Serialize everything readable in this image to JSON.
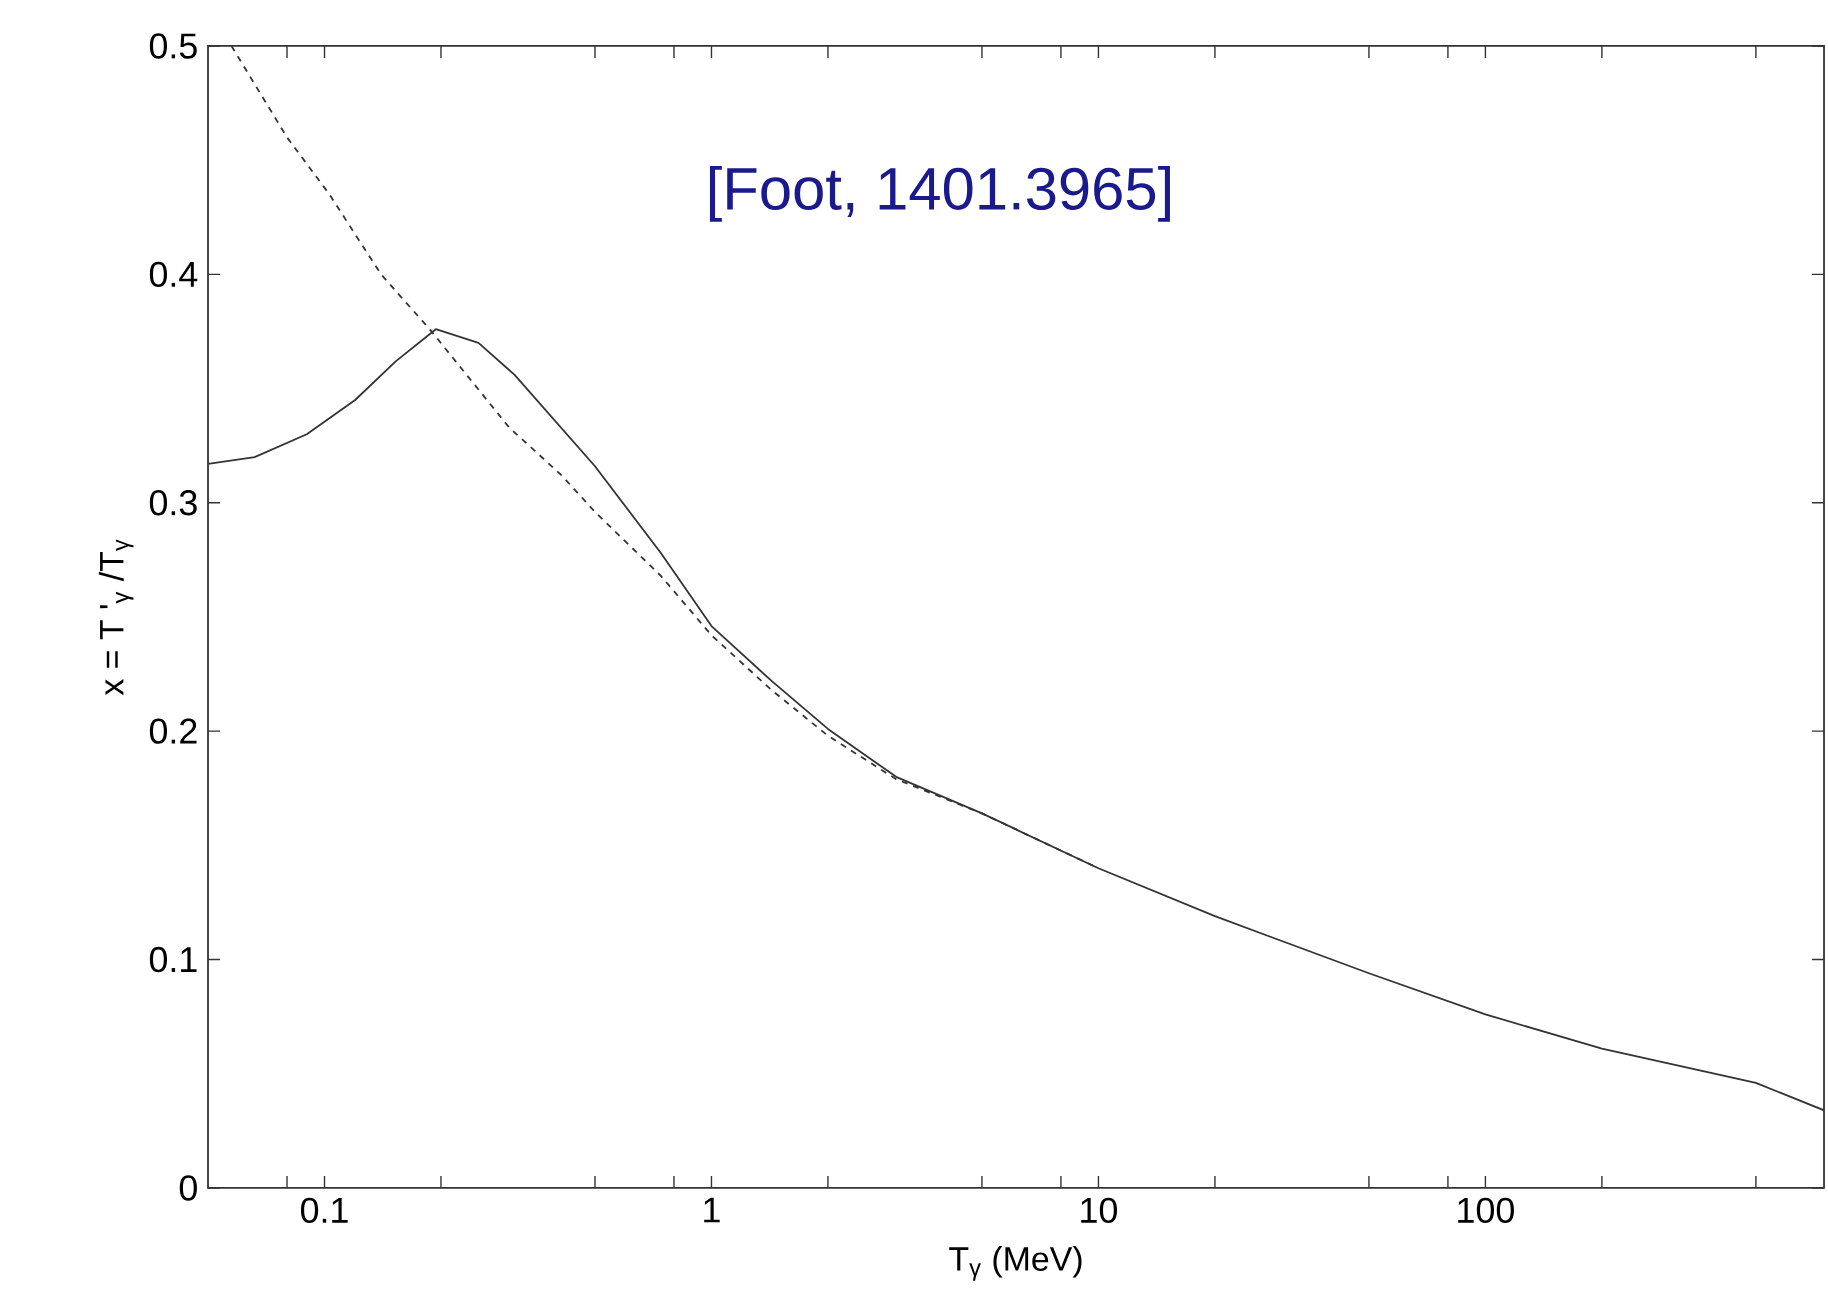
{
  "chart_data": {
    "type": "line",
    "log": "x",
    "xlabel": "T$_{γ}$  (MeV)",
    "ylabel": "x = T '$_{γ}$ /T$_{γ}$",
    "annotations": [
      "[Foot, 1401.3965]"
    ],
    "xlim": [
      0.05,
      750
    ],
    "ylim": [
      0,
      0.5
    ],
    "xticks": [
      {
        "value": 0.08,
        "label": null
      },
      0.1,
      {
        "value": 0.2,
        "label": null
      },
      {
        "value": 0.5,
        "label": null
      },
      {
        "value": 0.8,
        "label": null
      },
      1,
      {
        "value": 2,
        "label": null
      },
      {
        "value": 5,
        "label": null
      },
      {
        "value": 8,
        "label": null
      },
      10,
      {
        "value": 20,
        "label": null
      },
      {
        "value": 50,
        "label": null
      },
      {
        "value": 80,
        "label": null
      },
      100,
      {
        "value": 200,
        "label": null
      },
      {
        "value": 500,
        "label": null
      }
    ],
    "yticks": [
      0,
      0.1,
      0.2,
      0.3,
      0.4,
      0.5
    ],
    "series": [
      {
        "color": "#333333",
        "line_style": "solid",
        "x": [
          0.05,
          0.066,
          0.09,
          0.12,
          0.153,
          0.194,
          0.25,
          0.31,
          0.5,
          0.74,
          1,
          1.43,
          2,
          3,
          5,
          10,
          20,
          50,
          100,
          200,
          500,
          750
        ],
        "values": [
          0.317,
          0.32,
          0.33,
          0.345,
          0.362,
          0.376,
          0.37,
          0.356,
          0.316,
          0.278,
          0.246,
          0.222,
          0.201,
          0.18,
          0.164,
          0.14,
          0.119,
          0.094,
          0.076,
          0.061,
          0.046,
          0.034
        ]
      },
      {
        "color": "#333333",
        "line_style": "dashed",
        "x": [
          0.0575,
          0.08,
          0.103,
          0.14,
          0.187,
          0.3,
          0.41,
          0.5,
          0.74,
          1,
          1.43,
          2,
          3,
          5,
          10
        ],
        "values": [
          0.5,
          0.46,
          0.435,
          0.4,
          0.376,
          0.333,
          0.312,
          0.296,
          0.268,
          0.242,
          0.218,
          0.198,
          0.179,
          0.164,
          0.14
        ]
      }
    ]
  }
}
